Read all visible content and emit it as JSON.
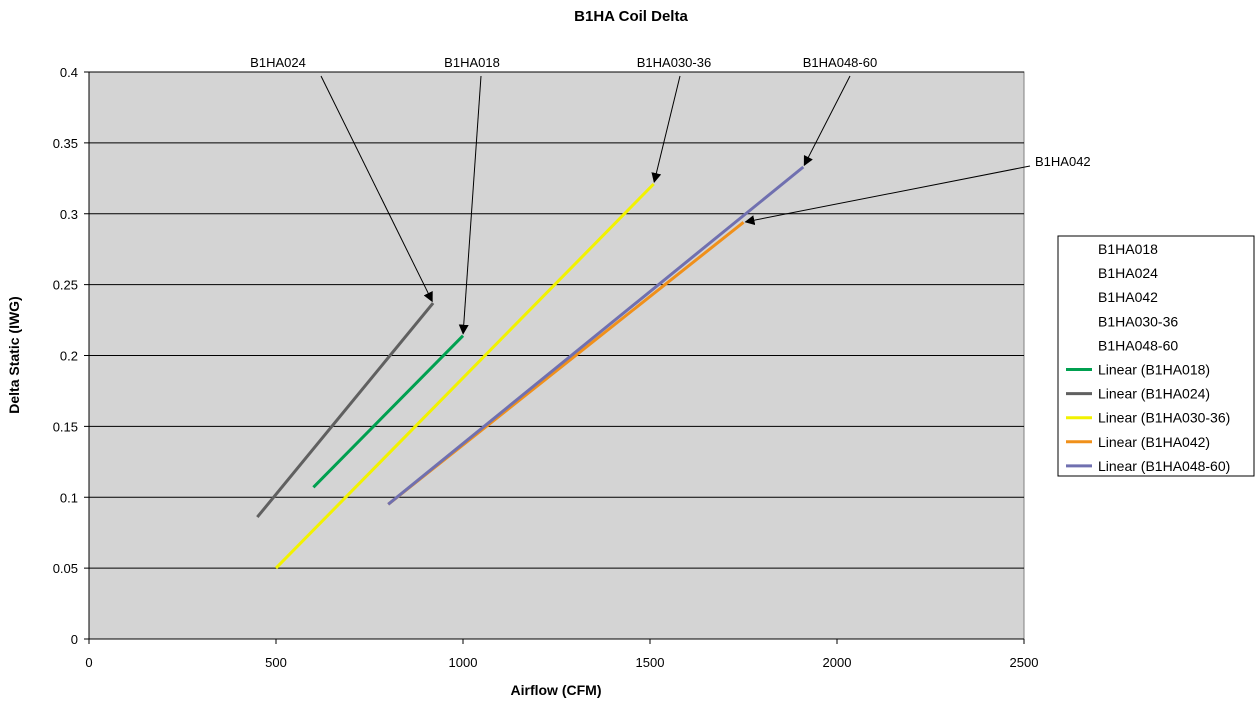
{
  "chart_data": {
    "type": "line",
    "title": "B1HA Coil Delta",
    "xlabel": "Airflow (CFM)",
    "ylabel": "Delta Static (IWG)",
    "xlim": [
      0,
      2500
    ],
    "ylim": [
      0,
      0.4
    ],
    "x_ticks": [
      "0",
      "500",
      "1000",
      "1500",
      "2000",
      "2500"
    ],
    "y_ticks": [
      "0",
      "0.05",
      "0.1",
      "0.15",
      "0.2",
      "0.25",
      "0.3",
      "0.35",
      "0.4"
    ],
    "grid": "horizontal",
    "plot_background": "#d4d4d4",
    "legend_position": "right",
    "series": [
      {
        "name": "Linear (B1HA018)",
        "color": "#00a050",
        "x": [
          600,
          1000
        ],
        "y": [
          0.107,
          0.214
        ]
      },
      {
        "name": "Linear (B1HA024)",
        "color": "#606060",
        "x": [
          450,
          920
        ],
        "y": [
          0.086,
          0.237
        ]
      },
      {
        "name": "Linear (B1HA030-36)",
        "color": "#f2f200",
        "x": [
          500,
          1510
        ],
        "y": [
          0.05,
          0.321
        ]
      },
      {
        "name": "Linear (B1HA042)",
        "color": "#f0901a",
        "x": [
          800,
          1750
        ],
        "y": [
          0.095,
          0.294
        ]
      },
      {
        "name": "Linear (B1HA048-60)",
        "color": "#7070b0",
        "x": [
          800,
          1910
        ],
        "y": [
          0.095,
          0.333
        ]
      }
    ],
    "legend_entries": [
      {
        "label": "B1HA018",
        "has_line": false,
        "color": ""
      },
      {
        "label": "B1HA024",
        "has_line": false,
        "color": ""
      },
      {
        "label": "B1HA042",
        "has_line": false,
        "color": ""
      },
      {
        "label": "B1HA030-36",
        "has_line": false,
        "color": ""
      },
      {
        "label": "B1HA048-60",
        "has_line": false,
        "color": ""
      },
      {
        "label": "Linear (B1HA018)",
        "has_line": true,
        "color": "#00a050"
      },
      {
        "label": "Linear (B1HA024)",
        "has_line": true,
        "color": "#606060"
      },
      {
        "label": "Linear (B1HA030-36)",
        "has_line": true,
        "color": "#f2f200"
      },
      {
        "label": "Linear (B1HA042)",
        "has_line": true,
        "color": "#f0901a"
      },
      {
        "label": "Linear (B1HA048-60)",
        "has_line": true,
        "color": "#7070b0"
      }
    ],
    "annotations": [
      {
        "text": "B1HA024",
        "points_to": [
          920,
          0.237
        ]
      },
      {
        "text": "B1HA018",
        "points_to": [
          1000,
          0.214
        ]
      },
      {
        "text": "B1HA030-36",
        "points_to": [
          1510,
          0.321
        ]
      },
      {
        "text": "B1HA048-60",
        "points_to": [
          1910,
          0.333
        ]
      },
      {
        "text": "B1HA042",
        "points_to": [
          1750,
          0.294
        ]
      }
    ]
  }
}
